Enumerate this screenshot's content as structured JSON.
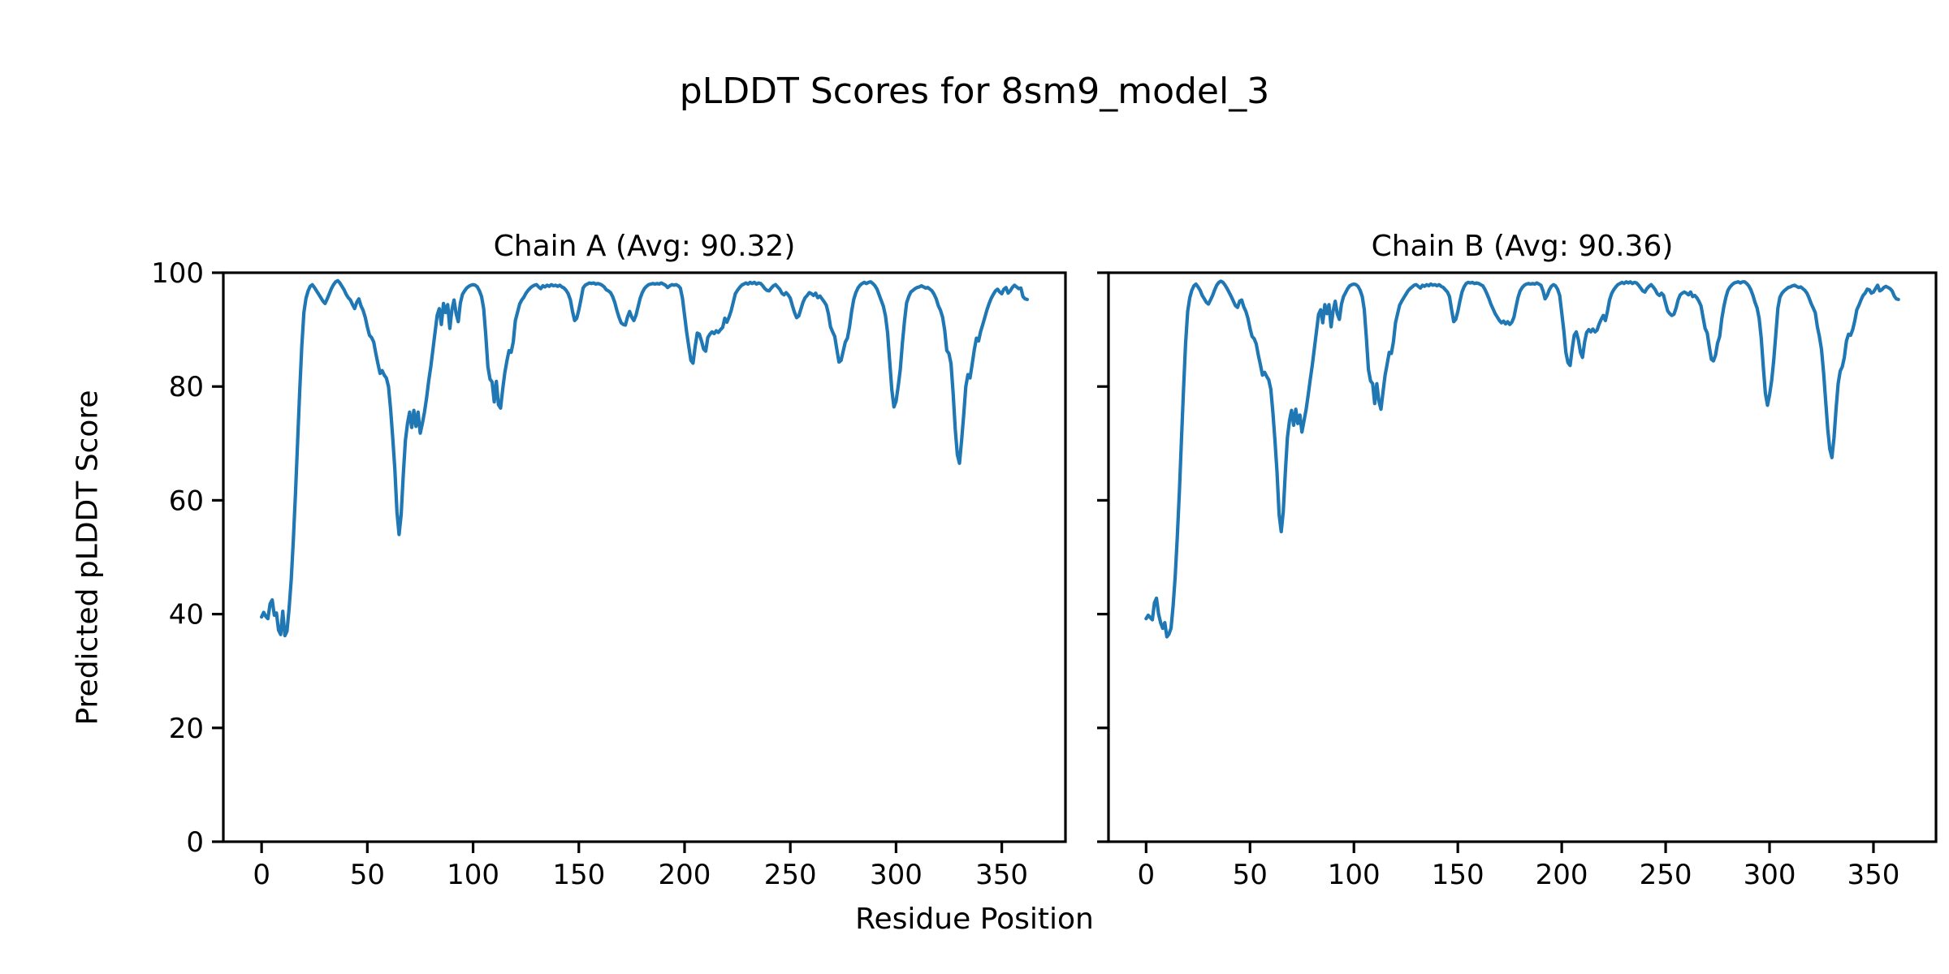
{
  "figure": {
    "suptitle": "pLDDT Scores for 8sm9_model_3",
    "xlabel": "Residue Position",
    "ylabel": "Predicted pLDDT Score",
    "line_color": "#1f77b4",
    "background": "#ffffff",
    "text_color": "#000000"
  },
  "chart_data": [
    {
      "type": "line",
      "title": "Chain A (Avg: 90.32)",
      "chain": "A",
      "average_plddt": 90.32,
      "xlabel": "Residue Position",
      "ylabel": "Predicted pLDDT Score",
      "legend": "none",
      "grid": false,
      "xlim": [
        -18.1,
        380.1
      ],
      "ylim": [
        0,
        100
      ],
      "x_ticks": [
        0,
        50,
        100,
        150,
        200,
        250,
        300,
        350
      ],
      "y_ticks": [
        0,
        20,
        40,
        60,
        80,
        100
      ],
      "x_start": 0,
      "x_step": 1,
      "values": [
        39.5,
        40.3,
        39.6,
        39.2,
        41.8,
        42.5,
        39.8,
        40.2,
        37.2,
        36.4,
        40.5,
        36.2,
        37.0,
        41.0,
        46.0,
        53.0,
        61.0,
        70.0,
        79.0,
        87.0,
        93.0,
        95.5,
        96.8,
        97.6,
        97.9,
        97.4,
        96.8,
        96.2,
        95.6,
        95.0,
        94.6,
        95.4,
        96.3,
        97.2,
        97.9,
        98.4,
        98.6,
        98.2,
        97.6,
        97.0,
        96.2,
        95.6,
        95.2,
        94.4,
        93.7,
        94.8,
        95.4,
        94.2,
        93.4,
        92.2,
        90.5,
        89.0,
        88.6,
        87.8,
        85.8,
        84.0,
        82.3,
        82.8,
        82.0,
        81.5,
        80.0,
        76.0,
        71.0,
        65.5,
        58.0,
        54.0,
        57.5,
        64.5,
        70.5,
        73.5,
        75.5,
        72.8,
        75.8,
        73.0,
        75.5,
        71.8,
        73.5,
        75.5,
        78.0,
        81.0,
        83.5,
        86.5,
        89.5,
        92.5,
        93.7,
        90.9,
        94.6,
        93.0,
        94.4,
        90.2,
        93.5,
        95.2,
        92.8,
        91.4,
        94.7,
        96.2,
        96.8,
        97.3,
        97.6,
        97.8,
        97.9,
        97.8,
        97.5,
        96.8,
        95.8,
        93.7,
        89.0,
        83.5,
        81.3,
        80.8,
        77.3,
        80.9,
        76.8,
        76.2,
        79.5,
        82.4,
        84.5,
        86.3,
        86.0,
        87.8,
        91.6,
        93.0,
        94.5,
        95.2,
        95.7,
        96.4,
        96.9,
        97.3,
        97.6,
        97.8,
        97.9,
        97.5,
        97.2,
        97.7,
        97.5,
        97.8,
        97.6,
        97.9,
        97.7,
        97.8,
        97.6,
        97.8,
        97.5,
        97.3,
        96.9,
        96.3,
        95.2,
        93.2,
        91.6,
        92.0,
        93.5,
        95.3,
        97.3,
        97.8,
        98.0,
        98.2,
        98.1,
        98.2,
        98.0,
        98.1,
        98.0,
        97.8,
        97.5,
        97.0,
        96.8,
        96.5,
        95.8,
        94.8,
        93.4,
        92.2,
        91.2,
        90.9,
        90.8,
        92.2,
        93.2,
        92.2,
        91.6,
        92.5,
        94.0,
        95.5,
        96.5,
        97.2,
        97.6,
        97.9,
        98.0,
        98.1,
        98.0,
        98.1,
        98.0,
        98.2,
        98.0,
        97.8,
        97.4,
        97.7,
        97.9,
        97.8,
        97.9,
        97.7,
        97.3,
        95.5,
        92.5,
        89.5,
        87.0,
        84.6,
        84.1,
        87.0,
        89.4,
        89.2,
        88.0,
        86.6,
        86.2,
        88.6,
        89.2,
        89.6,
        89.3,
        89.8,
        89.5,
        90.0,
        90.4,
        92.0,
        91.3,
        92.2,
        93.3,
        94.8,
        96.3,
        96.9,
        97.4,
        97.8,
        98.0,
        98.2,
        98.0,
        98.3,
        98.1,
        98.3,
        98.0,
        98.2,
        98.1,
        97.7,
        97.2,
        96.9,
        96.8,
        97.3,
        97.7,
        97.9,
        97.5,
        97.1,
        96.4,
        96.1,
        96.5,
        96.1,
        95.5,
        94.2,
        93.0,
        92.1,
        92.4,
        93.6,
        94.8,
        95.6,
        96.0,
        96.5,
        96.3,
        96.0,
        96.4,
        95.6,
        95.9,
        95.4,
        94.9,
        94.3,
        92.8,
        90.5,
        89.6,
        88.8,
        86.5,
        84.3,
        84.6,
        86.2,
        87.8,
        88.5,
        90.5,
        93.2,
        95.3,
        96.5,
        97.3,
        97.8,
        98.1,
        98.3,
        98.1,
        98.3,
        98.4,
        98.1,
        97.7,
        97.1,
        96.1,
        95.1,
        94.1,
        92.4,
        89.4,
        84.4,
        79.4,
        76.4,
        77.4,
        80.0,
        83.0,
        87.6,
        91.5,
        94.7,
        95.8,
        96.6,
        96.9,
        97.2,
        97.4,
        97.5,
        97.7,
        97.5,
        97.3,
        97.4,
        97.1,
        96.8,
        96.2,
        95.4,
        94.2,
        93.4,
        92.2,
        89.9,
        86.3,
        85.8,
        84.0,
        78.8,
        72.5,
        68.0,
        66.5,
        70.5,
        75.0,
        80.0,
        82.1,
        81.5,
        84.0,
        86.5,
        88.5,
        88.0,
        89.7,
        90.9,
        92.2,
        93.5,
        94.6,
        95.5,
        96.2,
        96.8,
        97.1,
        96.6,
        96.3,
        97.1,
        97.4,
        96.4,
        96.8,
        97.4,
        97.8,
        97.5,
        97.2,
        97.3,
        95.8,
        95.4,
        95.3
      ]
    },
    {
      "type": "line",
      "title": "Chain B (Avg: 90.36)",
      "chain": "B",
      "average_plddt": 90.36,
      "xlabel": "Residue Position",
      "ylabel": "Predicted pLDDT Score",
      "legend": "none",
      "grid": false,
      "xlim": [
        -18.1,
        380.1
      ],
      "ylim": [
        0,
        100
      ],
      "x_ticks": [
        0,
        50,
        100,
        150,
        200,
        250,
        300,
        350
      ],
      "y_ticks": [
        0,
        20,
        40,
        60,
        80,
        100
      ],
      "x_start": 0,
      "x_step": 1,
      "values": [
        39.2,
        39.8,
        39.4,
        39.0,
        42.0,
        42.8,
        40.0,
        38.5,
        37.5,
        38.5,
        36.0,
        36.5,
        37.5,
        41.5,
        46.5,
        53.5,
        61.5,
        70.5,
        79.5,
        87.5,
        93.2,
        95.6,
        96.9,
        97.7,
        98.0,
        97.5,
        96.9,
        96.0,
        95.4,
        94.8,
        94.5,
        95.2,
        96.0,
        97.0,
        97.8,
        98.3,
        98.5,
        98.3,
        97.8,
        97.2,
        96.5,
        95.8,
        95.0,
        94.2,
        93.9,
        95.0,
        95.2,
        94.0,
        93.2,
        92.0,
        90.2,
        88.8,
        88.4,
        87.5,
        85.5,
        83.8,
        82.0,
        82.5,
        81.8,
        81.2,
        79.5,
        75.5,
        70.5,
        65.0,
        57.5,
        54.5,
        58.0,
        65.0,
        71.0,
        74.0,
        75.8,
        73.2,
        76.0,
        73.5,
        75.0,
        72.0,
        74.0,
        76.0,
        78.5,
        81.3,
        83.8,
        86.8,
        89.8,
        92.7,
        93.5,
        91.2,
        94.4,
        92.8,
        94.4,
        90.5,
        93.3,
        95.0,
        92.8,
        91.8,
        94.5,
        95.8,
        96.5,
        97.2,
        97.7,
        97.9,
        98.0,
        97.9,
        97.6,
        96.9,
        95.8,
        93.5,
        88.5,
        83.0,
        81.0,
        80.5,
        77.0,
        80.5,
        77.5,
        76.0,
        79.0,
        82.0,
        84.0,
        86.0,
        85.8,
        87.8,
        91.2,
        92.8,
        94.3,
        95.0,
        95.6,
        96.2,
        96.8,
        97.2,
        97.5,
        97.8,
        97.9,
        97.6,
        97.3,
        97.8,
        97.6,
        97.9,
        97.7,
        98.0,
        97.8,
        97.9,
        97.7,
        97.9,
        97.6,
        97.4,
        97.0,
        96.6,
        95.8,
        93.5,
        91.4,
        91.8,
        93.2,
        95.0,
        96.6,
        97.5,
        98.1,
        98.3,
        98.2,
        98.3,
        98.1,
        98.2,
        98.1,
        97.9,
        97.7,
        97.1,
        96.3,
        95.4,
        94.4,
        93.6,
        92.8,
        92.2,
        91.6,
        91.2,
        91.5,
        91.0,
        91.4,
        90.9,
        91.3,
        92.2,
        94.0,
        95.7,
        96.8,
        97.4,
        97.8,
        98.0,
        98.1,
        98.0,
        98.1,
        98.0,
        98.2,
        98.0,
        97.8,
        96.8,
        95.4,
        96.0,
        97.0,
        97.6,
        97.9,
        97.7,
        97.1,
        96.0,
        93.0,
        89.8,
        86.0,
        84.2,
        83.7,
        86.5,
        89.0,
        89.6,
        88.2,
        86.0,
        85.1,
        87.8,
        89.5,
        90.0,
        89.6,
        90.1,
        89.6,
        89.9,
        91.0,
        91.8,
        92.5,
        91.6,
        93.2,
        95.2,
        96.3,
        97.0,
        97.5,
        97.9,
        98.1,
        98.3,
        98.1,
        98.4,
        98.2,
        98.4,
        98.1,
        98.3,
        98.2,
        97.8,
        97.3,
        96.8,
        96.6,
        97.2,
        97.6,
        97.9,
        97.5,
        97.0,
        96.3,
        96.0,
        96.4,
        96.0,
        94.6,
        93.3,
        92.8,
        92.5,
        92.7,
        93.8,
        95.2,
        96.1,
        96.4,
        96.6,
        96.4,
        96.1,
        96.6,
        95.8,
        96.0,
        95.6,
        95.0,
        94.2,
        92.2,
        90.2,
        89.4,
        87.0,
        84.8,
        84.5,
        85.5,
        87.6,
        88.8,
        91.9,
        94.0,
        95.7,
        96.9,
        97.5,
        97.9,
        98.2,
        98.3,
        98.4,
        98.2,
        98.4,
        98.4,
        98.1,
        97.7,
        97.0,
        96.0,
        94.8,
        93.8,
        92.0,
        88.5,
        83.5,
        78.8,
        76.7,
        78.5,
        81.0,
        84.5,
        89.1,
        93.8,
        95.7,
        96.4,
        96.8,
        97.1,
        97.4,
        97.5,
        97.7,
        97.8,
        97.6,
        97.4,
        97.5,
        97.2,
        96.9,
        96.4,
        95.6,
        94.6,
        93.8,
        93.0,
        90.5,
        88.8,
        86.5,
        82.4,
        77.5,
        72.5,
        69.0,
        67.5,
        71.0,
        76.0,
        80.5,
        82.7,
        83.5,
        85.1,
        88.0,
        89.2,
        89.0,
        90.0,
        91.5,
        93.5,
        94.3,
        95.2,
        96.0,
        96.4,
        97.1,
        97.0,
        96.4,
        96.6,
        97.2,
        97.8,
        96.8,
        97.0,
        97.4,
        97.6,
        97.4,
        97.2,
        96.8,
        95.9,
        95.4,
        95.3
      ]
    }
  ]
}
